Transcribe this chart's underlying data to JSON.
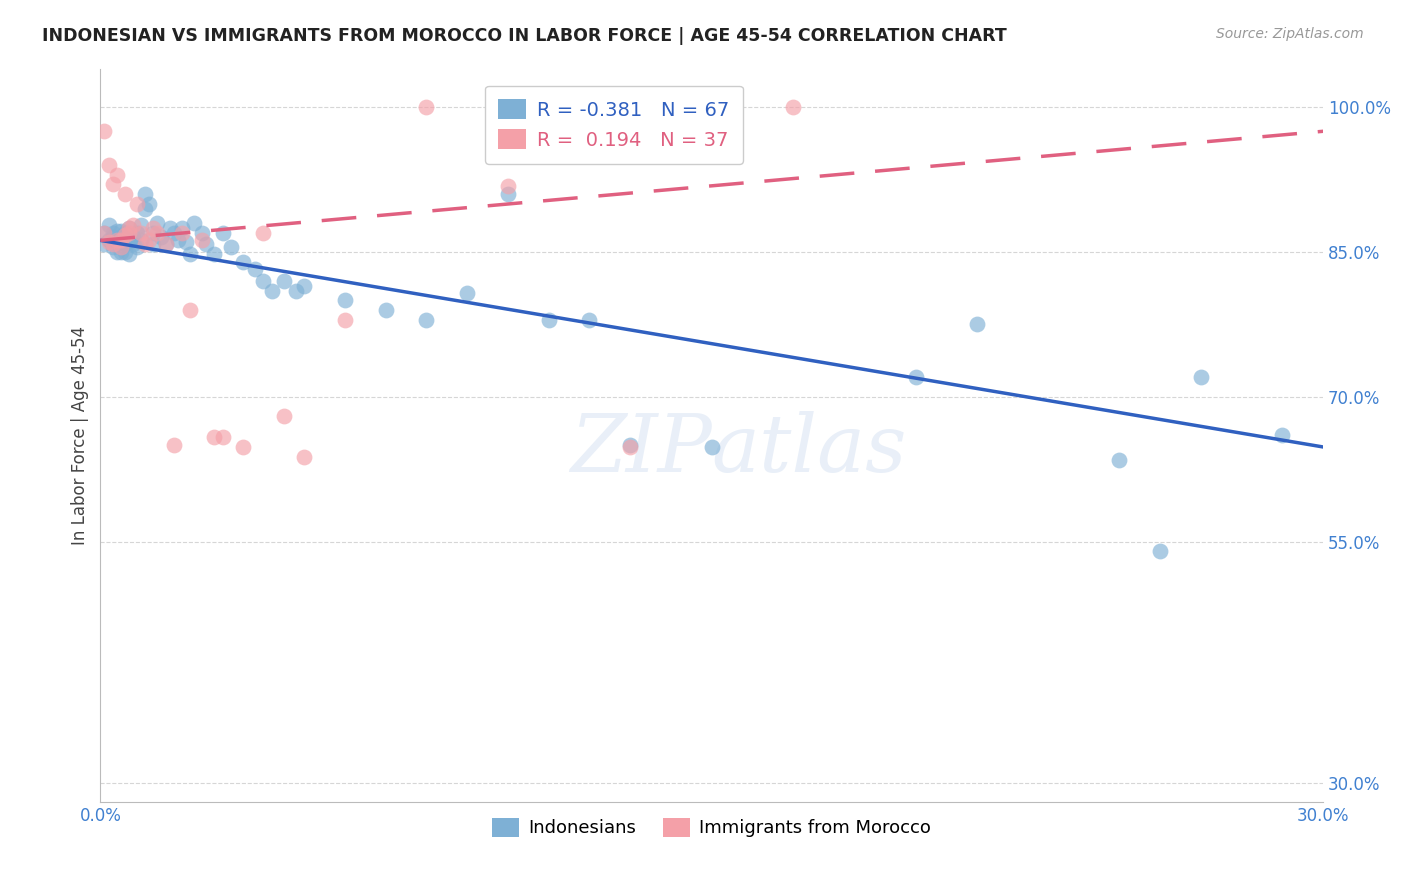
{
  "title": "INDONESIAN VS IMMIGRANTS FROM MOROCCO IN LABOR FORCE | AGE 45-54 CORRELATION CHART",
  "source": "Source: ZipAtlas.com",
  "ylabel": "In Labor Force | Age 45-54",
  "xlim": [
    0.0,
    0.3
  ],
  "ylim": [
    0.28,
    1.04
  ],
  "yticks": [
    0.3,
    0.55,
    0.7,
    0.85,
    1.0
  ],
  "ytick_labels": [
    "30.0%",
    "55.0%",
    "70.0%",
    "85.0%",
    "100.0%"
  ],
  "xticks": [
    0.0,
    0.05,
    0.1,
    0.15,
    0.2,
    0.25,
    0.3
  ],
  "xtick_labels": [
    "0.0%",
    "",
    "",
    "",
    "",
    "",
    "30.0%"
  ],
  "blue_R": -0.381,
  "blue_N": 67,
  "pink_R": 0.194,
  "pink_N": 37,
  "blue_color": "#7EB0D5",
  "pink_color": "#F4A0A8",
  "blue_line_color": "#3060C0",
  "pink_line_color": "#E06080",
  "axis_label_color": "#4080D0",
  "watermark": "ZIPatlas",
  "blue_line_x0": 0.0,
  "blue_line_y0": 0.862,
  "blue_line_x1": 0.3,
  "blue_line_y1": 0.648,
  "pink_line_x0": 0.0,
  "pink_line_y0": 0.862,
  "pink_line_x1": 0.3,
  "pink_line_y1": 0.975,
  "blue_x": [
    0.001,
    0.001,
    0.002,
    0.002,
    0.003,
    0.003,
    0.003,
    0.004,
    0.004,
    0.004,
    0.005,
    0.005,
    0.005,
    0.006,
    0.006,
    0.006,
    0.007,
    0.007,
    0.007,
    0.008,
    0.008,
    0.009,
    0.009,
    0.01,
    0.01,
    0.011,
    0.011,
    0.012,
    0.013,
    0.013,
    0.014,
    0.015,
    0.016,
    0.017,
    0.018,
    0.019,
    0.02,
    0.021,
    0.022,
    0.023,
    0.025,
    0.026,
    0.028,
    0.03,
    0.032,
    0.035,
    0.038,
    0.04,
    0.042,
    0.045,
    0.048,
    0.05,
    0.06,
    0.07,
    0.08,
    0.09,
    0.1,
    0.11,
    0.12,
    0.13,
    0.15,
    0.2,
    0.215,
    0.25,
    0.26,
    0.27,
    0.29
  ],
  "blue_y": [
    0.87,
    0.858,
    0.878,
    0.862,
    0.87,
    0.855,
    0.865,
    0.86,
    0.85,
    0.872,
    0.865,
    0.85,
    0.872,
    0.858,
    0.87,
    0.85,
    0.862,
    0.875,
    0.848,
    0.865,
    0.858,
    0.87,
    0.855,
    0.862,
    0.878,
    0.91,
    0.895,
    0.9,
    0.87,
    0.858,
    0.88,
    0.865,
    0.858,
    0.875,
    0.87,
    0.862,
    0.875,
    0.86,
    0.848,
    0.88,
    0.87,
    0.858,
    0.848,
    0.87,
    0.855,
    0.84,
    0.832,
    0.82,
    0.81,
    0.82,
    0.81,
    0.815,
    0.8,
    0.79,
    0.78,
    0.808,
    0.91,
    0.78,
    0.78,
    0.65,
    0.648,
    0.72,
    0.775,
    0.635,
    0.54,
    0.72,
    0.66
  ],
  "pink_x": [
    0.001,
    0.001,
    0.002,
    0.002,
    0.003,
    0.003,
    0.004,
    0.004,
    0.005,
    0.005,
    0.006,
    0.006,
    0.007,
    0.007,
    0.008,
    0.009,
    0.01,
    0.011,
    0.012,
    0.013,
    0.014,
    0.016,
    0.018,
    0.02,
    0.022,
    0.025,
    0.028,
    0.03,
    0.035,
    0.04,
    0.045,
    0.05,
    0.06,
    0.08,
    0.1,
    0.13,
    0.17
  ],
  "pink_y": [
    0.87,
    0.975,
    0.94,
    0.86,
    0.92,
    0.858,
    0.93,
    0.862,
    0.862,
    0.855,
    0.868,
    0.91,
    0.87,
    0.875,
    0.878,
    0.9,
    0.87,
    0.858,
    0.862,
    0.875,
    0.87,
    0.858,
    0.65,
    0.87,
    0.79,
    0.862,
    0.658,
    0.658,
    0.648,
    0.87,
    0.68,
    0.638,
    0.78,
    1.0,
    0.918,
    0.648,
    1.0
  ]
}
